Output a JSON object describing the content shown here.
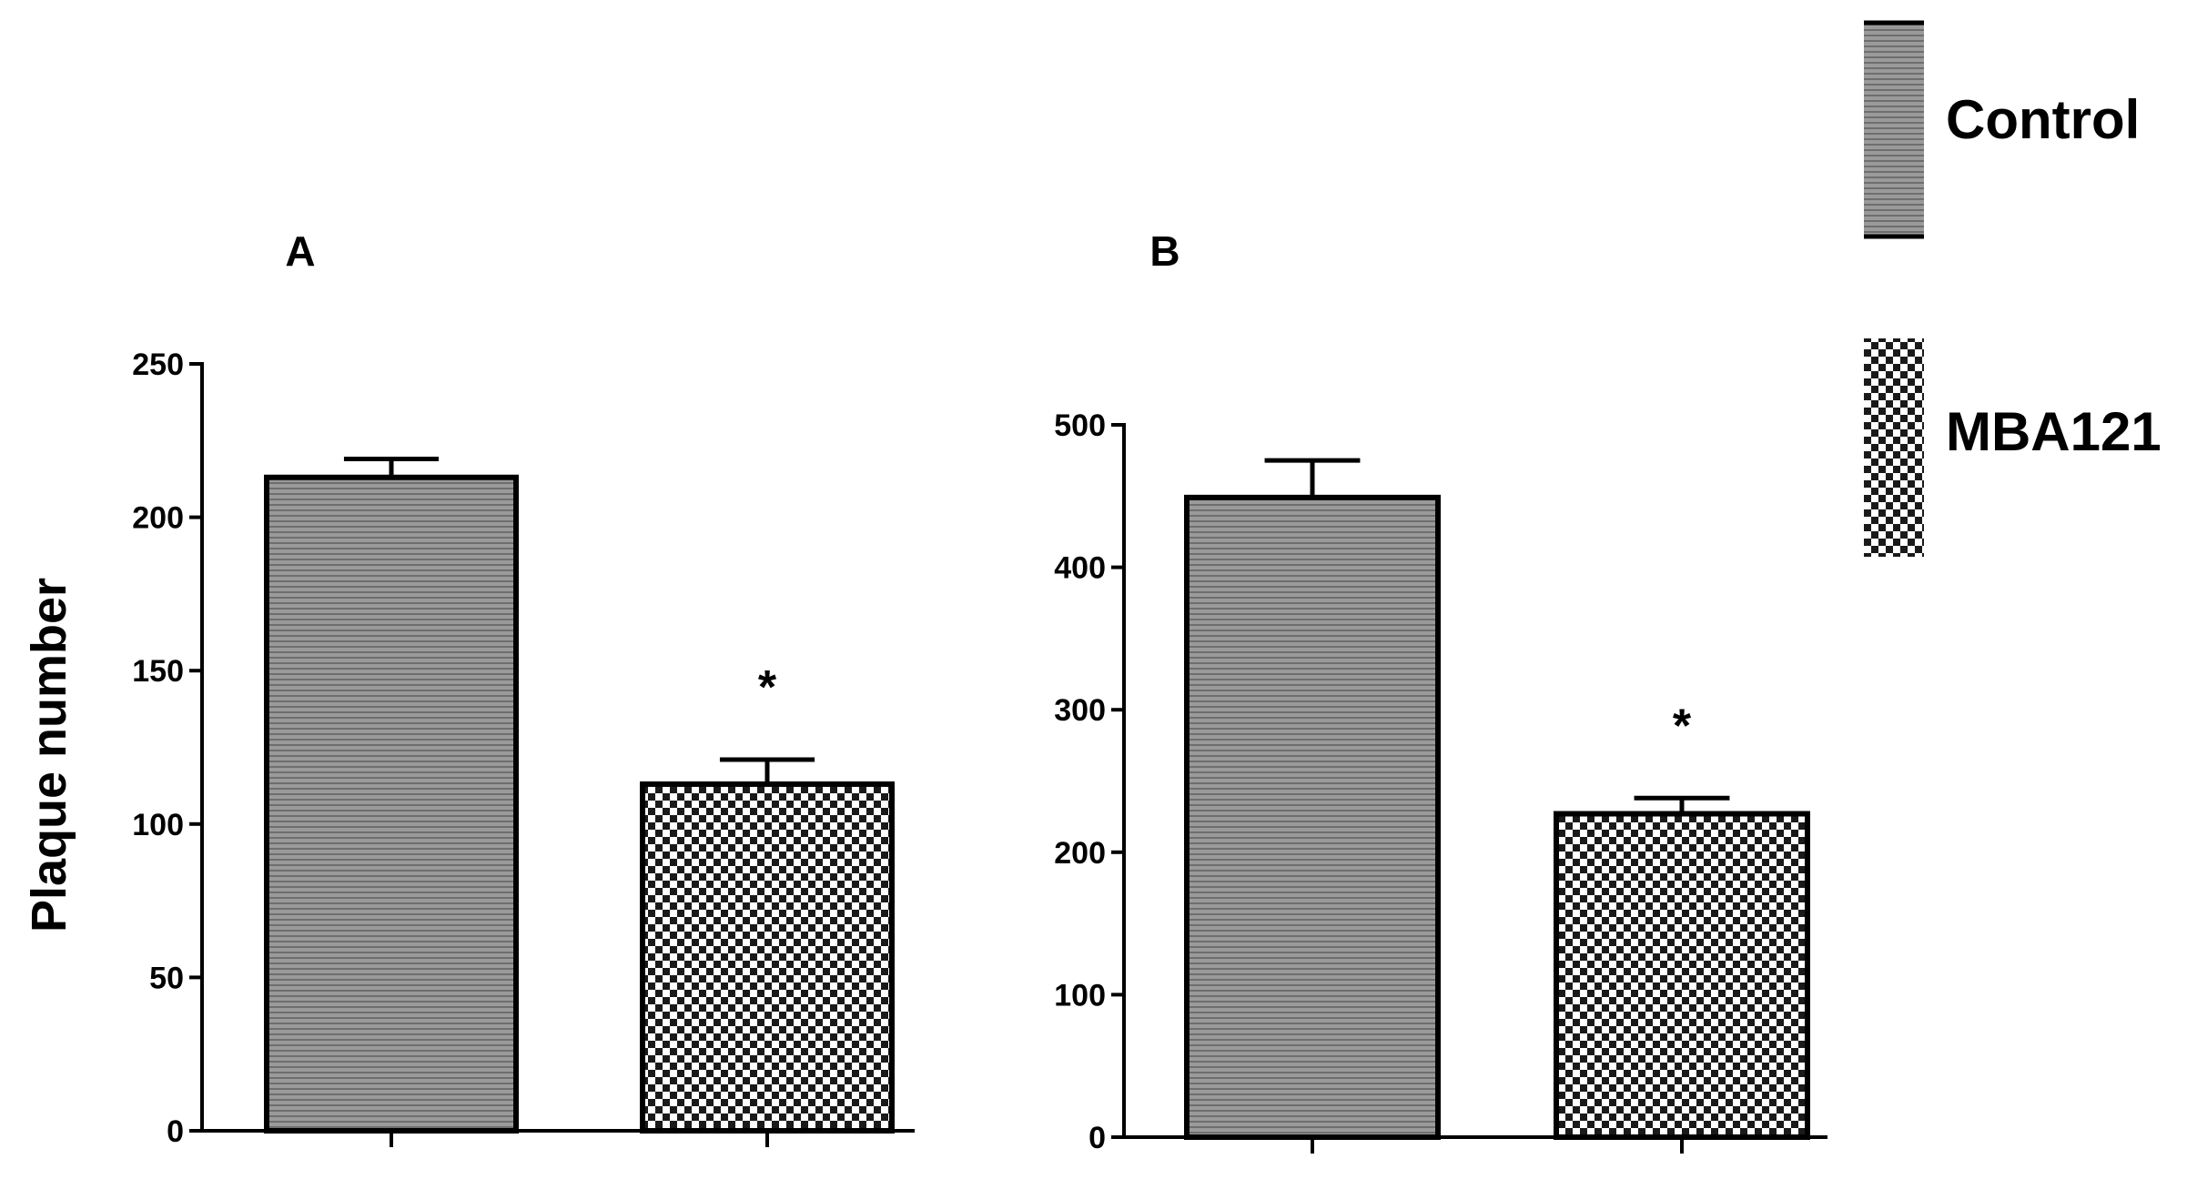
{
  "figure": {
    "ylabel": "Plaque number",
    "legend": {
      "placement": "top-right",
      "entries": [
        {
          "label": "Control",
          "pattern": "fine-hatch",
          "color": "#8a8a8a"
        },
        {
          "label": "MBA121",
          "pattern": "checker",
          "color": "#ffffff"
        }
      ]
    }
  },
  "chart_data": [
    {
      "type": "bar",
      "panel": "A",
      "categories": [
        "Control",
        "MBA121"
      ],
      "values": [
        213,
        113
      ],
      "error": [
        6,
        8
      ],
      "annotations": [
        "",
        "*"
      ],
      "ylabel": "Plaque number",
      "ylim": [
        0,
        250
      ],
      "yticks": [
        0,
        50,
        100,
        150,
        200,
        250
      ],
      "grid": false
    },
    {
      "type": "bar",
      "panel": "B",
      "categories": [
        "Control",
        "MBA121"
      ],
      "values": [
        449,
        227
      ],
      "error": [
        26,
        11
      ],
      "annotations": [
        "",
        "*"
      ],
      "ylim": [
        0,
        500
      ],
      "yticks": [
        0,
        100,
        200,
        300,
        400,
        500
      ],
      "grid": false
    }
  ]
}
